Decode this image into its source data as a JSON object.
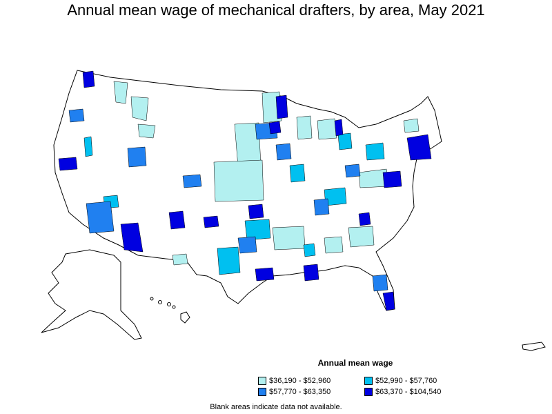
{
  "title": "Annual mean wage of mechanical drafters, by area, May 2021",
  "legend": {
    "title": "Annual mean wage",
    "items": [
      {
        "label": "$36,190 - $52,960",
        "color": "#b3f0f0"
      },
      {
        "label": "$52,990 - $57,760",
        "color": "#00c0f0"
      },
      {
        "label": "$57,770 - $63,350",
        "color": "#2080f0"
      },
      {
        "label": "$63,370 - $104,540",
        "color": "#0000e0"
      }
    ]
  },
  "note": "Blank areas indicate data not available."
}
